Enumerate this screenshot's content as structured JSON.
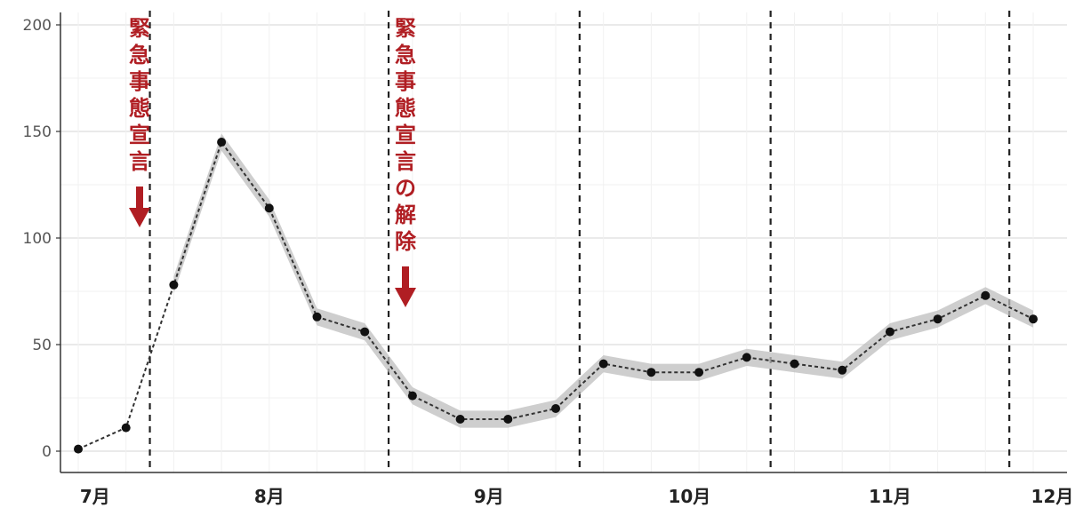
{
  "chart_data": {
    "type": "line",
    "title": "",
    "xlabel": "",
    "ylabel": "",
    "ylim": [
      0,
      200
    ],
    "y_ticks": [
      0,
      50,
      100,
      150,
      200
    ],
    "x_tick_labels": [
      "7月",
      "8月",
      "9月",
      "10月",
      "11月",
      "12月"
    ],
    "grid": true,
    "series": [
      {
        "points": [
          {
            "x": 0,
            "y": 1
          },
          {
            "x": 1,
            "y": 11
          },
          {
            "x": 2,
            "y": 78
          },
          {
            "x": 3,
            "y": 145
          },
          {
            "x": 4,
            "y": 114
          },
          {
            "x": 5,
            "y": 63
          },
          {
            "x": 6,
            "y": 56
          },
          {
            "x": 7,
            "y": 26
          },
          {
            "x": 8,
            "y": 15
          },
          {
            "x": 9,
            "y": 15
          },
          {
            "x": 10,
            "y": 20
          },
          {
            "x": 11,
            "y": 41
          },
          {
            "x": 12,
            "y": 37
          },
          {
            "x": 13,
            "y": 37
          },
          {
            "x": 14,
            "y": 44
          },
          {
            "x": 15,
            "y": 41
          },
          {
            "x": 16,
            "y": 38
          },
          {
            "x": 17,
            "y": 56
          },
          {
            "x": 18,
            "y": 62
          },
          {
            "x": 19,
            "y": 73
          },
          {
            "x": 20,
            "y": 62
          }
        ],
        "band_halfwidth": 4,
        "color": "#333333",
        "band_color": "#bdbdbd"
      }
    ],
    "vertical_lines": [
      1.5,
      6.5,
      10.5,
      14.5,
      19.5
    ],
    "annotations": [
      {
        "text": "緊急事態宣言",
        "color": "#b01e23"
      },
      {
        "text": "緊急事態宣言の解除",
        "color": "#b01e23"
      }
    ]
  }
}
